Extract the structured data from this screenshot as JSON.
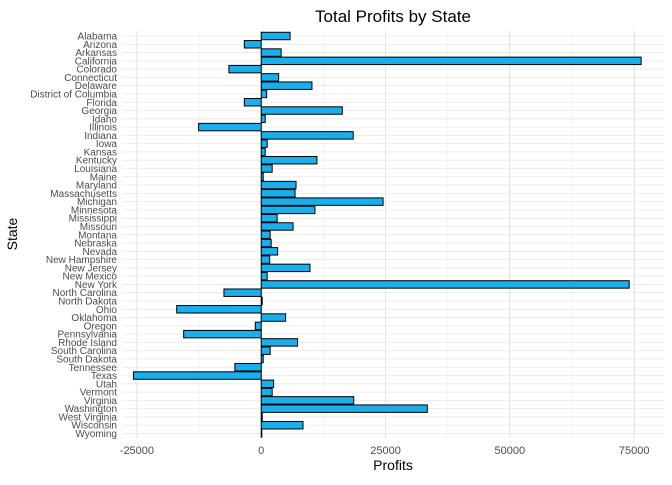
{
  "chart_data": {
    "type": "bar",
    "orientation": "horizontal",
    "title": "Total Profits by State",
    "xlabel": "Profits",
    "ylabel": "State",
    "xlim": [
      -28000,
      81000
    ],
    "xticks": [
      -25000,
      0,
      25000,
      50000,
      75000
    ],
    "xtick_labels": [
      "-25000",
      "0",
      "25000",
      "50000",
      "75000"
    ],
    "grid": true,
    "legend": "none",
    "bar_color": "#1AAEEB",
    "bar_stroke": "#000000",
    "categories": [
      "Alabama",
      "Arizona",
      "Arkansas",
      "California",
      "Colorado",
      "Connecticut",
      "Delaware",
      "District of Columbia",
      "Florida",
      "Georgia",
      "Idaho",
      "Illinois",
      "Indiana",
      "Iowa",
      "Kansas",
      "Kentucky",
      "Louisiana",
      "Maine",
      "Maryland",
      "Massachusetts",
      "Michigan",
      "Minnesota",
      "Mississippi",
      "Missouri",
      "Montana",
      "Nebraska",
      "Nevada",
      "New Hampshire",
      "New Jersey",
      "New Mexico",
      "New York",
      "North Carolina",
      "North Dakota",
      "Ohio",
      "Oklahoma",
      "Oregon",
      "Pennsylvania",
      "Rhode Island",
      "South Carolina",
      "South Dakota",
      "Tennessee",
      "Texas",
      "Utah",
      "Vermont",
      "Virginia",
      "Washington",
      "West Virginia",
      "Wisconsin",
      "Wyoming"
    ],
    "values": [
      5800,
      -3400,
      4000,
      76400,
      -6500,
      3500,
      10200,
      1100,
      -3400,
      16300,
      800,
      -12600,
      18500,
      1200,
      800,
      11200,
      2200,
      400,
      7000,
      6800,
      24500,
      10800,
      3200,
      6400,
      1800,
      2000,
      3300,
      1700,
      9800,
      1200,
      74000,
      -7500,
      200,
      -17000,
      4900,
      -1200,
      -15600,
      7300,
      1800,
      400,
      -5300,
      -25700,
      2500,
      2200,
      18600,
      33400,
      200,
      8400,
      100
    ]
  }
}
